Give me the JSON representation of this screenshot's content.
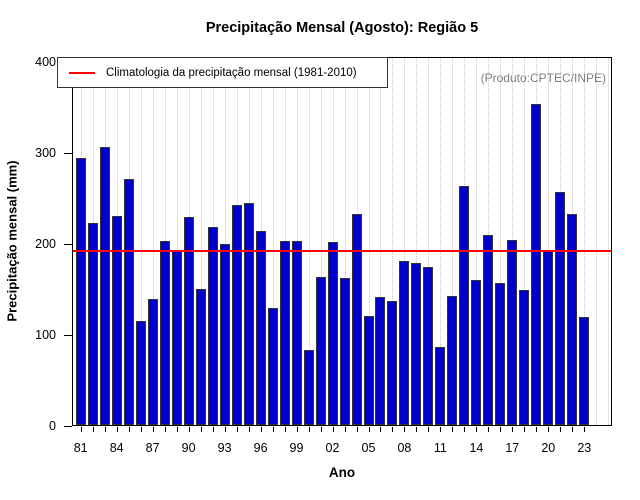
{
  "title": "Precipitação Mensal (Agosto): Região 5",
  "watermark": "(Produto:CPTEC/INPE)",
  "legend": {
    "climatology_label": "Climatologia da precipitação mensal (1981-2010)"
  },
  "axes": {
    "xlabel": "Ano",
    "ylabel": "Precipitação mensal (mm)"
  },
  "colors": {
    "bar_fill": "#0000CD",
    "bar_border": "#333333",
    "climatology_line": "#FF0000",
    "gridline": "#C6C6C6",
    "watermark_text": "#7E7E7E",
    "axis": "#000000"
  },
  "chart_data": {
    "type": "bar",
    "title": "Precipitação Mensal (Agosto): Região 5",
    "xlabel": "Ano",
    "ylabel": "Precipitação mensal (mm)",
    "ylim": [
      0,
      400
    ],
    "yticks": [
      0,
      100,
      200,
      300,
      400
    ],
    "grid": "vertical-dotted-per-year",
    "legend_position": "top-left",
    "annotation": "(Produto:CPTEC/INPE)",
    "climatology_mm": 192,
    "climatology_label": "Climatologia da precipitação mensal (1981-2010)",
    "years": [
      1981,
      1982,
      1983,
      1984,
      1985,
      1986,
      1987,
      1988,
      1989,
      1990,
      1991,
      1992,
      1993,
      1994,
      1995,
      1996,
      1997,
      1998,
      1999,
      2000,
      2001,
      2002,
      2003,
      2004,
      2005,
      2006,
      2007,
      2008,
      2009,
      2010,
      2011,
      2012,
      2013,
      2014,
      2015,
      2016,
      2017,
      2018,
      2019,
      2020,
      2021,
      2022,
      2023
    ],
    "values": [
      294,
      222,
      306,
      230,
      271,
      114,
      139,
      202,
      193,
      229,
      150,
      218,
      199,
      242,
      244,
      214,
      129,
      203,
      202,
      83,
      163,
      201,
      162,
      232,
      120,
      141,
      136,
      180,
      178,
      174,
      86,
      142,
      263,
      160,
      209,
      156,
      204,
      149,
      353,
      193,
      256,
      232,
      119
    ],
    "xtick_labels": [
      "81",
      "84",
      "87",
      "90",
      "93",
      "96",
      "99",
      "02",
      "05",
      "08",
      "11",
      "14",
      "17",
      "20",
      "23"
    ],
    "xtick_label_step_years": 3
  }
}
